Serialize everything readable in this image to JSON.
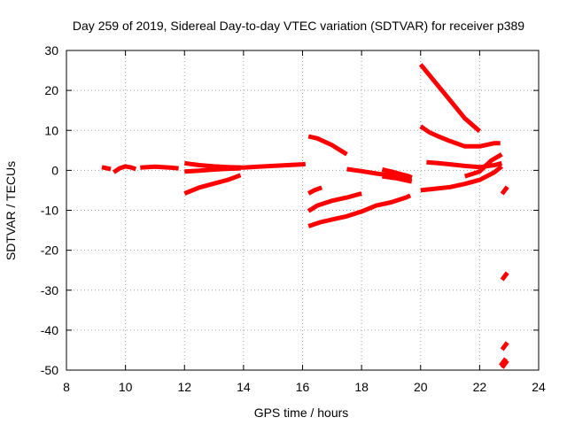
{
  "chart_data": {
    "type": "scatter",
    "title": "Day 259 of 2019, Sidereal Day-to-day VTEC variation (SDTVAR) for receiver p389",
    "xlabel": "GPS time / hours",
    "ylabel": "SDTVAR / TECUs",
    "xlim": [
      8,
      24
    ],
    "ylim": [
      -50,
      30
    ],
    "xticks": [
      8,
      10,
      12,
      14,
      16,
      18,
      20,
      22,
      24
    ],
    "yticks": [
      -50,
      -40,
      -30,
      -20,
      -10,
      0,
      10,
      20,
      30
    ],
    "grid": true,
    "color": "#ff0000",
    "series": [
      {
        "points": [
          [
            9.2,
            0.8
          ],
          [
            9.5,
            0.3
          ]
        ]
      },
      {
        "points": [
          [
            9.6,
            -0.5
          ],
          [
            9.8,
            0.5
          ],
          [
            10.0,
            1.0
          ],
          [
            10.2,
            0.7
          ],
          [
            10.35,
            0.3
          ]
        ]
      },
      {
        "points": [
          [
            10.5,
            0.7
          ],
          [
            11.0,
            0.9
          ],
          [
            11.5,
            0.7
          ],
          [
            11.8,
            0.5
          ]
        ]
      },
      {
        "points": [
          [
            12.0,
            1.8
          ],
          [
            12.5,
            1.3
          ],
          [
            13.0,
            1.0
          ],
          [
            13.5,
            0.8
          ],
          [
            14.0,
            0.7
          ],
          [
            14.5,
            0.9
          ],
          [
            15.0,
            1.1
          ],
          [
            15.5,
            1.3
          ],
          [
            16.0,
            1.5
          ],
          [
            16.1,
            1.6
          ]
        ]
      },
      {
        "points": [
          [
            12.0,
            -0.3
          ],
          [
            12.5,
            -0.1
          ],
          [
            13.0,
            0.2
          ],
          [
            13.5,
            0.4
          ],
          [
            13.9,
            0.5
          ]
        ]
      },
      {
        "points": [
          [
            12.0,
            -5.8
          ],
          [
            12.5,
            -4.3
          ],
          [
            13.0,
            -3.3
          ],
          [
            13.5,
            -2.3
          ],
          [
            13.9,
            -1.2
          ]
        ]
      },
      {
        "points": [
          [
            16.2,
            8.5
          ],
          [
            16.5,
            8.0
          ],
          [
            17.0,
            6.3
          ],
          [
            17.5,
            4.0
          ]
        ]
      },
      {
        "points": [
          [
            16.2,
            -5.8
          ],
          [
            16.4,
            -5.0
          ],
          [
            16.65,
            -4.3
          ]
        ]
      },
      {
        "points": [
          [
            16.2,
            -10.2
          ],
          [
            16.5,
            -8.8
          ],
          [
            17.0,
            -7.6
          ],
          [
            17.5,
            -6.8
          ],
          [
            18.0,
            -5.8
          ]
        ]
      },
      {
        "points": [
          [
            16.2,
            -14.0
          ],
          [
            16.6,
            -13.0
          ],
          [
            17.0,
            -12.3
          ],
          [
            17.5,
            -11.5
          ],
          [
            18.0,
            -10.3
          ],
          [
            18.5,
            -8.8
          ],
          [
            19.0,
            -8.0
          ],
          [
            19.5,
            -6.8
          ],
          [
            19.65,
            -6.3
          ]
        ]
      },
      {
        "points": [
          [
            17.5,
            0.3
          ],
          [
            18.0,
            -0.2
          ],
          [
            18.5,
            -0.8
          ],
          [
            19.0,
            -1.3
          ],
          [
            19.5,
            -1.8
          ],
          [
            19.7,
            -2.0
          ]
        ]
      },
      {
        "points": [
          [
            18.7,
            0.2
          ],
          [
            19.0,
            -0.3
          ],
          [
            19.3,
            -0.9
          ],
          [
            19.6,
            -1.5
          ],
          [
            19.7,
            -1.8
          ]
        ]
      },
      {
        "points": [
          [
            18.7,
            -1.5
          ],
          [
            19.2,
            -2.0
          ],
          [
            19.5,
            -2.5
          ],
          [
            19.7,
            -2.8
          ]
        ]
      },
      {
        "points": [
          [
            20.0,
            26.5
          ],
          [
            20.5,
            22.0
          ],
          [
            21.0,
            17.5
          ],
          [
            21.5,
            13.0
          ],
          [
            22.0,
            9.8
          ]
        ]
      },
      {
        "points": [
          [
            20.0,
            11.0
          ],
          [
            20.3,
            9.5
          ],
          [
            20.6,
            8.5
          ],
          [
            21.0,
            7.3
          ],
          [
            21.5,
            6.0
          ],
          [
            22.0,
            6.0
          ],
          [
            22.5,
            6.8
          ],
          [
            22.7,
            6.8
          ]
        ]
      },
      {
        "points": [
          [
            20.2,
            2.0
          ],
          [
            20.6,
            1.8
          ],
          [
            21.0,
            1.5
          ],
          [
            21.5,
            1.1
          ],
          [
            22.0,
            0.8
          ],
          [
            22.5,
            1.3
          ],
          [
            22.75,
            1.8
          ]
        ]
      },
      {
        "points": [
          [
            20.0,
            -5.0
          ],
          [
            20.5,
            -4.6
          ],
          [
            21.0,
            -4.2
          ],
          [
            21.5,
            -3.4
          ],
          [
            22.0,
            -2.4
          ],
          [
            22.5,
            -0.5
          ],
          [
            22.75,
            1.0
          ]
        ]
      },
      {
        "points": [
          [
            21.5,
            -1.5
          ],
          [
            22.0,
            -0.3
          ],
          [
            22.4,
            2.5
          ],
          [
            22.75,
            4.0
          ]
        ]
      }
    ],
    "isolated_points": [
      [
        22.85,
        -5.0
      ],
      [
        22.85,
        -26.5
      ],
      [
        22.85,
        -44.0
      ],
      [
        22.8,
        -48.0
      ],
      [
        22.85,
        -48.5
      ]
    ]
  }
}
